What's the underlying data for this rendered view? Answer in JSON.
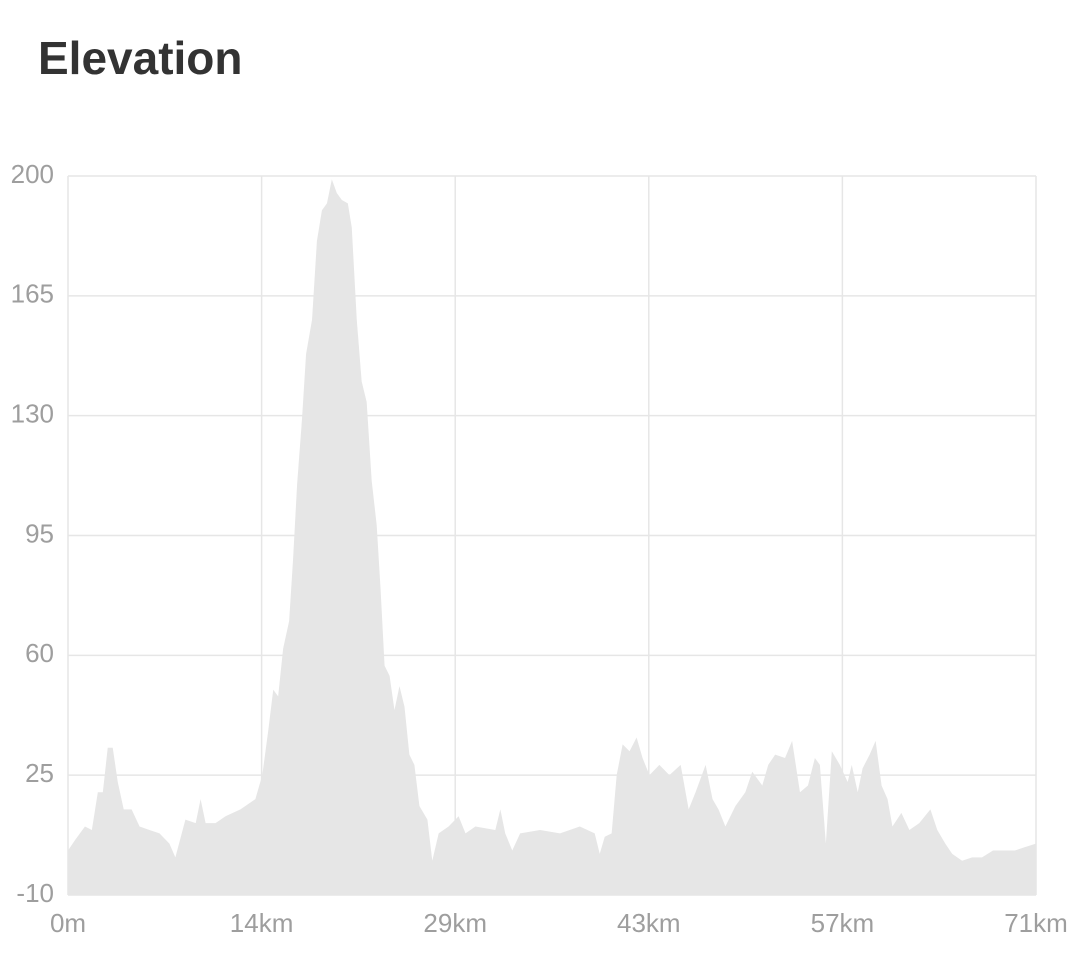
{
  "chart_data": {
    "type": "area",
    "title": "Elevation",
    "x": [
      0,
      0.51,
      1.25,
      1.76,
      2.2,
      2.57,
      2.93,
      3.3,
      3.67,
      4.11,
      4.69,
      5.28,
      6.01,
      6.75,
      7.48,
      7.92,
      8.66,
      9.42,
      9.78,
      10.15,
      10.88,
      11.62,
      12.72,
      13.82,
      14.33,
      14.77,
      15.14,
      15.5,
      15.87,
      16.31,
      16.6,
      16.9,
      17.26,
      17.56,
      18.0,
      18.36,
      18.73,
      19.1,
      19.46,
      19.83,
      20.2,
      20.64,
      20.93,
      21.3,
      21.66,
      22.03,
      22.4,
      22.77,
      23.06,
      23.35,
      23.72,
      24.08,
      24.45,
      24.82,
      25.18,
      25.55,
      25.92,
      26.51,
      26.87,
      27.34,
      28.07,
      28.81,
      29.32,
      30.05,
      31.52,
      31.89,
      32.25,
      32.77,
      33.35,
      34.82,
      36.29,
      37.75,
      38.85,
      39.22,
      39.59,
      40.1,
      40.47,
      40.91,
      41.42,
      41.94,
      42.38,
      42.89,
      43.62,
      44.36,
      45.19,
      45.78,
      46.29,
      47.03,
      47.54,
      47.98,
      48.49,
      49.23,
      49.96,
      50.47,
      51.21,
      51.65,
      52.16,
      52.89,
      53.41,
      53.99,
      54.58,
      55.09,
      55.46,
      55.9,
      56.34,
      56.93,
      57.51,
      57.81,
      58.25,
      58.61,
      59.13,
      59.57,
      60.01,
      60.45,
      60.81,
      61.47,
      62.06,
      62.79,
      63.61,
      64.12,
      64.71,
      65.22,
      65.95,
      66.69,
      67.42,
      68.23,
      69.11,
      69.84,
      70.58,
      71.4
    ],
    "series": [
      {
        "color": "#e6e6e6",
        "values": [
          3,
          6,
          10,
          9,
          20,
          20,
          33,
          33,
          23,
          15,
          15,
          10,
          9,
          8,
          5,
          1,
          12,
          11,
          18,
          11,
          11,
          13,
          15,
          18,
          25,
          38,
          50,
          48,
          62,
          70,
          88,
          110,
          129,
          148,
          158,
          181,
          190,
          192,
          199,
          195,
          193,
          192,
          185,
          158,
          140,
          134,
          111,
          98,
          79,
          57,
          54,
          44,
          51,
          45,
          31,
          28,
          16,
          12,
          0,
          8,
          10,
          13,
          8,
          10,
          9,
          15,
          8,
          3,
          8,
          9,
          8,
          10,
          8,
          2,
          7,
          8,
          25,
          34,
          32,
          36,
          30,
          25,
          28,
          25,
          28,
          15,
          20,
          28,
          18,
          15,
          10,
          16,
          20,
          26,
          22,
          28,
          31,
          30,
          35,
          20,
          22,
          30,
          28,
          5,
          32,
          28,
          23,
          28,
          20,
          27,
          31,
          35,
          22,
          18,
          10,
          14,
          9,
          11,
          15,
          9,
          5,
          2,
          0,
          1,
          1,
          3,
          3,
          3,
          4,
          5
        ]
      }
    ],
    "xlim": [
      0,
      71.4
    ],
    "xticks": [
      {
        "value": 0,
        "label": "0m"
      },
      {
        "value": 14.28,
        "label": "14km"
      },
      {
        "value": 28.56,
        "label": "29km"
      },
      {
        "value": 42.84,
        "label": "43km"
      },
      {
        "value": 57.12,
        "label": "57km"
      },
      {
        "value": 71.4,
        "label": "71km"
      }
    ],
    "ylim": [
      -10,
      200
    ],
    "yticks": [
      -10,
      25,
      60,
      95,
      130,
      165,
      200
    ],
    "grid": true
  }
}
